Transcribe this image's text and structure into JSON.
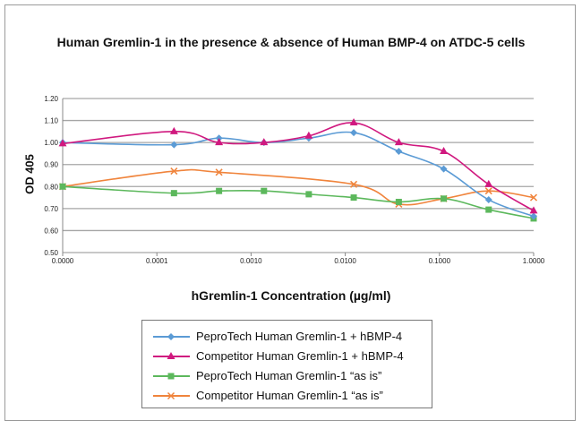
{
  "chart_data": {
    "type": "line",
    "title": "Human Gremlin-1 in the presence & absence of Human BMP-4 on ATDC-5 cells",
    "xlabel": "hGremlin-1 Concentration (µg/ml)",
    "ylabel": "OD 405",
    "x_scale": "log",
    "x_ticks": [
      1e-05,
      0.0001,
      0.001,
      0.01,
      0.1,
      1
    ],
    "x_tick_labels": [
      "0.0000",
      "0.0001",
      "0.0010",
      "0.0100",
      "0.1000",
      "1.0000"
    ],
    "ylim": [
      0.5,
      1.2
    ],
    "y_ticks": [
      0.5,
      0.6,
      0.7,
      0.8,
      0.9,
      1.0,
      1.1,
      1.2
    ],
    "y_tick_labels": [
      "0.50",
      "0.60",
      "0.70",
      "0.80",
      "0.90",
      "1.00",
      "1.10",
      "1.20"
    ],
    "grid": "horizontal",
    "legend_position": "bottom",
    "x": [
      0,
      0.000152,
      0.000457,
      0.00137,
      0.0041,
      0.0123,
      0.037,
      0.111,
      0.333,
      1.0
    ],
    "series": [
      {
        "name": "PeproTech Human Gremlin-1 + hBMP-4",
        "color": "#5b9bd5",
        "marker": "diamond",
        "values": [
          1.0,
          0.99,
          1.02,
          1.0,
          1.02,
          1.045,
          0.96,
          0.88,
          0.74,
          0.665
        ]
      },
      {
        "name": "Competitor Human Gremlin-1 + hBMP-4",
        "color": "#d0197f",
        "marker": "triangle",
        "values": [
          0.995,
          1.05,
          1.0,
          1.0,
          1.03,
          1.09,
          1.0,
          0.96,
          0.81,
          0.69
        ]
      },
      {
        "name": "PeproTech Human Gremlin-1 “as is”",
        "color": "#5cb85c",
        "marker": "square",
        "values": [
          0.8,
          0.77,
          0.78,
          0.78,
          0.765,
          0.75,
          0.73,
          0.745,
          0.695,
          0.655
        ]
      },
      {
        "name": "Competitor Human Gremlin-1 “as is”",
        "color": "#f0843c",
        "marker": "x",
        "values": [
          0.8,
          0.87,
          0.865,
          null,
          null,
          0.81,
          0.72,
          0.745,
          0.78,
          0.75
        ]
      }
    ]
  }
}
